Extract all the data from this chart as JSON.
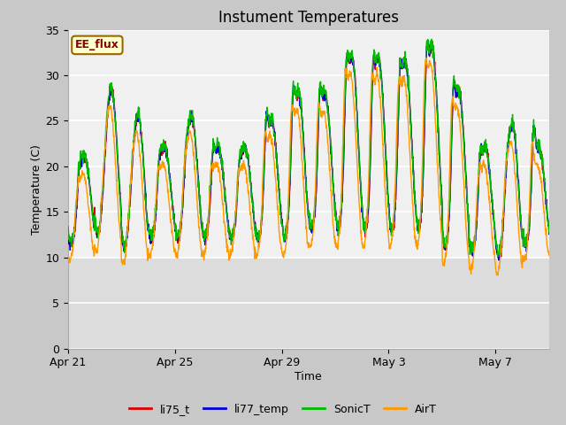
{
  "title": "Instument Temperatures",
  "xlabel": "Time",
  "ylabel": "Temperature (C)",
  "ylim": [
    0,
    35
  ],
  "figure_bg": "#c8c8c8",
  "plot_bg": "#f0f0f0",
  "lower_band_bg": "#dcdcdc",
  "annotation_text": "EE_flux",
  "annotation_bg": "#ffffcc",
  "annotation_border": "#996600",
  "line_colors": [
    "#dd0000",
    "#0000dd",
    "#00bb00",
    "#ff9900"
  ],
  "legend_labels": [
    "li75_t",
    "li77_temp",
    "SonicT",
    "AirT"
  ],
  "x_tick_labels": [
    "Apr 21",
    "Apr 25",
    "Apr 29",
    "May 3",
    "May 7"
  ],
  "x_tick_positions": [
    0,
    4,
    8,
    12,
    16
  ],
  "n_days": 18,
  "pts_per_day": 96,
  "daily_peaks_am": [
    19.5,
    21.0,
    20.5,
    21.0,
    22.0,
    21.5,
    20.5,
    25.0,
    27.8,
    28.0,
    31.2,
    31.0,
    30.2,
    32.5,
    28.5,
    21.0,
    20.5,
    24.0
  ],
  "daily_peaks_pm": [
    21.0,
    28.5,
    25.5,
    22.0,
    25.5,
    22.0,
    22.0,
    25.0,
    28.0,
    27.8,
    32.0,
    31.8,
    31.5,
    33.0,
    28.3,
    22.0,
    24.5,
    22.0
  ],
  "daily_mins": [
    11.5,
    12.5,
    11.0,
    12.0,
    12.0,
    12.0,
    12.0,
    12.0,
    12.0,
    13.0,
    13.0,
    13.0,
    13.0,
    13.0,
    11.0,
    10.5,
    10.0,
    11.5
  ]
}
